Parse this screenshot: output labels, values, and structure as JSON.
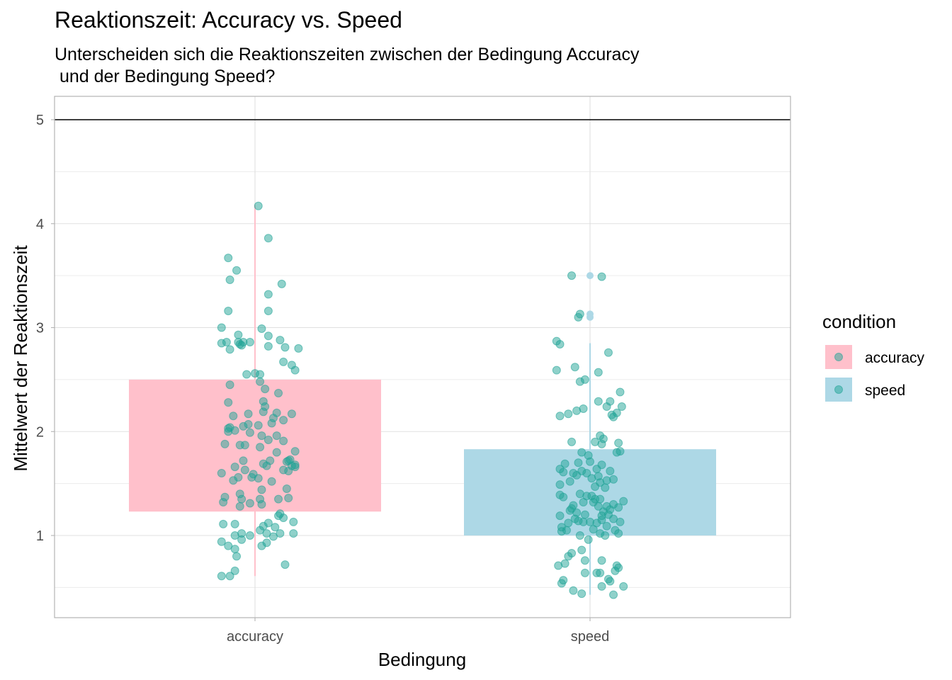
{
  "chart_data": {
    "type": "bar",
    "title": "Reaktionszeit: Accuracy vs. Speed",
    "subtitle": "Unterscheiden sich die Reaktionszeiten zwischen der Bedingung Accuracy\n und der Bedingung Speed?",
    "xlabel": "Bedingung",
    "ylabel": "Mittelwert der Reaktionszeit",
    "categories": [
      "accuracy",
      "speed"
    ],
    "ylim": [
      0.3,
      5.3
    ],
    "yticks": [
      1,
      2,
      3,
      4,
      5
    ],
    "grid": true,
    "legend_title": "condition",
    "legend_position": "right",
    "reference_line": 5,
    "colors": {
      "accuracy": "#FFC0CB",
      "speed": "#ADD8E6",
      "points": "#1FA396",
      "reference": "#000000"
    },
    "bars": [
      {
        "category": "accuracy",
        "ymin": 1.23,
        "ymax": 2.5,
        "whisker_min": 0.61,
        "whisker_max": 4.18
      },
      {
        "category": "speed",
        "ymin": 1.0,
        "ymax": 1.83,
        "whisker_min": 0.43,
        "whisker_max": 2.85,
        "outliers": [
          3.1,
          3.13,
          3.5
        ]
      }
    ],
    "points": {
      "accuracy": [
        [
          -0.2,
          0.61
        ],
        [
          -0.15,
          0.61
        ],
        [
          -0.12,
          0.66
        ],
        [
          -0.11,
          0.8
        ],
        [
          -0.2,
          0.94
        ],
        [
          -0.16,
          0.9
        ],
        [
          -0.12,
          0.87
        ],
        [
          -0.08,
          0.96
        ],
        [
          0.04,
          0.9
        ],
        [
          0.07,
          0.93
        ],
        [
          0.11,
          0.99
        ],
        [
          0.18,
          0.72
        ],
        [
          -0.19,
          1.11
        ],
        [
          -0.12,
          1.0
        ],
        [
          -0.08,
          1.02
        ],
        [
          -0.12,
          1.11
        ],
        [
          -0.03,
          1.0
        ],
        [
          0.03,
          1.05
        ],
        [
          0.05,
          1.09
        ],
        [
          0.07,
          1.02
        ],
        [
          0.12,
          1.08
        ],
        [
          0.15,
          1.02
        ],
        [
          0.17,
          1.17
        ],
        [
          0.23,
          1.02
        ],
        [
          0.23,
          1.13
        ],
        [
          -0.19,
          1.32
        ],
        [
          -0.18,
          1.37
        ],
        [
          -0.09,
          1.28
        ],
        [
          -0.08,
          1.35
        ],
        [
          -0.09,
          1.4
        ],
        [
          -0.03,
          1.31
        ],
        [
          0.03,
          1.35
        ],
        [
          0.04,
          1.3
        ],
        [
          0.04,
          1.44
        ],
        [
          0.08,
          1.12
        ],
        [
          0.14,
          1.19
        ],
        [
          0.14,
          1.35
        ],
        [
          0.15,
          1.21
        ],
        [
          0.19,
          1.45
        ],
        [
          0.2,
          1.62
        ],
        [
          0.22,
          1.67
        ],
        [
          0.19,
          1.71
        ],
        [
          0.2,
          1.36
        ],
        [
          -0.2,
          1.6
        ],
        [
          -0.13,
          1.53
        ],
        [
          -0.1,
          1.56
        ],
        [
          -0.07,
          1.72
        ],
        [
          -0.06,
          1.63
        ],
        [
          -0.02,
          1.56
        ],
        [
          -0.01,
          1.59
        ],
        [
          0.02,
          1.55
        ],
        [
          0.07,
          1.67
        ],
        [
          0.09,
          1.72
        ],
        [
          0.1,
          1.52
        ],
        [
          0.13,
          1.8
        ],
        [
          0.17,
          1.63
        ],
        [
          0.2,
          1.72
        ],
        [
          0.24,
          1.66
        ],
        [
          0.24,
          1.68
        ],
        [
          -0.18,
          1.88
        ],
        [
          -0.16,
          2.03
        ],
        [
          -0.12,
          2.01
        ],
        [
          -0.09,
          1.87
        ],
        [
          -0.06,
          1.87
        ],
        [
          -0.03,
          1.99
        ],
        [
          0.03,
          1.85
        ],
        [
          0.04,
          1.96
        ],
        [
          0.05,
          1.69
        ],
        [
          0.08,
          1.92
        ],
        [
          0.13,
          1.96
        ],
        [
          0.17,
          1.91
        ],
        [
          0.21,
          1.73
        ],
        [
          0.24,
          1.81
        ],
        [
          -0.15,
          2.04
        ],
        [
          -0.16,
          2.0
        ],
        [
          -0.13,
          2.15
        ],
        [
          -0.12,
          1.66
        ],
        [
          -0.07,
          2.05
        ],
        [
          -0.04,
          2.07
        ],
        [
          -0.04,
          2.17
        ],
        [
          0.02,
          2.06
        ],
        [
          0.05,
          2.19
        ],
        [
          0.06,
          2.24
        ],
        [
          0.1,
          2.08
        ],
        [
          0.11,
          2.13
        ],
        [
          0.13,
          2.18
        ],
        [
          0.17,
          2.11
        ],
        [
          0.22,
          2.17
        ],
        [
          -0.16,
          2.28
        ],
        [
          -0.15,
          2.45
        ],
        [
          -0.05,
          2.55
        ],
        [
          0.0,
          2.56
        ],
        [
          0.03,
          2.55
        ],
        [
          0.03,
          2.48
        ],
        [
          0.05,
          2.29
        ],
        [
          0.06,
          2.41
        ],
        [
          0.14,
          2.37
        ],
        [
          0.17,
          2.67
        ],
        [
          0.22,
          2.64
        ],
        [
          0.24,
          2.59
        ],
        [
          -0.2,
          2.85
        ],
        [
          -0.17,
          2.86
        ],
        [
          -0.15,
          2.79
        ],
        [
          -0.1,
          2.86
        ],
        [
          -0.1,
          2.93
        ],
        [
          -0.08,
          2.83
        ],
        [
          -0.07,
          2.86
        ],
        [
          -0.09,
          2.84
        ],
        [
          -0.03,
          2.86
        ],
        [
          0.04,
          2.99
        ],
        [
          0.08,
          2.82
        ],
        [
          0.08,
          2.92
        ],
        [
          0.15,
          2.88
        ],
        [
          0.18,
          2.81
        ],
        [
          0.26,
          2.8
        ],
        [
          -0.2,
          3.0
        ],
        [
          -0.16,
          3.16
        ],
        [
          -0.15,
          3.46
        ],
        [
          -0.16,
          3.67
        ],
        [
          -0.11,
          3.55
        ],
        [
          0.08,
          3.32
        ],
        [
          0.08,
          3.16
        ],
        [
          0.16,
          3.42
        ],
        [
          0.08,
          3.86
        ],
        [
          0.02,
          4.17
        ]
      ],
      "speed": [
        [
          -0.19,
          0.71
        ],
        [
          -0.17,
          0.54
        ],
        [
          -0.16,
          0.57
        ],
        [
          -0.15,
          0.73
        ],
        [
          -0.13,
          0.8
        ],
        [
          -0.11,
          0.83
        ],
        [
          -0.1,
          0.47
        ],
        [
          -0.05,
          0.86
        ],
        [
          -0.05,
          0.44
        ],
        [
          -0.03,
          0.76
        ],
        [
          -0.03,
          0.64
        ],
        [
          -0.01,
          0.96
        ],
        [
          0.04,
          0.64
        ],
        [
          0.06,
          0.64
        ],
        [
          0.07,
          0.76
        ],
        [
          0.07,
          0.51
        ],
        [
          0.11,
          0.58
        ],
        [
          0.12,
          0.56
        ],
        [
          0.14,
          0.43
        ],
        [
          0.15,
          0.66
        ],
        [
          0.16,
          0.71
        ],
        [
          0.17,
          0.69
        ],
        [
          0.2,
          0.51
        ],
        [
          -0.17,
          1.04
        ],
        [
          -0.17,
          1.08
        ],
        [
          -0.18,
          1.19
        ],
        [
          -0.14,
          1.05
        ],
        [
          -0.13,
          1.12
        ],
        [
          -0.1,
          1.29
        ],
        [
          -0.09,
          1.16
        ],
        [
          -0.07,
          1.14
        ],
        [
          -0.06,
          1.0
        ],
        [
          -0.04,
          1.13
        ],
        [
          -0.03,
          1.2
        ],
        [
          0.0,
          1.13
        ],
        [
          0.02,
          1.06
        ],
        [
          0.04,
          1.12
        ],
        [
          0.06,
          1.02
        ],
        [
          0.07,
          1.15
        ],
        [
          0.08,
          1.23
        ],
        [
          0.09,
          1.0
        ],
        [
          0.1,
          1.09
        ],
        [
          0.11,
          1.2
        ],
        [
          0.14,
          1.16
        ],
        [
          0.15,
          1.05
        ],
        [
          0.17,
          1.02
        ],
        [
          0.18,
          1.13
        ],
        [
          0.2,
          1.33
        ],
        [
          -0.18,
          1.39
        ],
        [
          -0.16,
          1.37
        ],
        [
          -0.12,
          1.24
        ],
        [
          -0.11,
          1.26
        ],
        [
          -0.08,
          1.22
        ],
        [
          -0.06,
          1.4
        ],
        [
          -0.04,
          1.32
        ],
        [
          -0.02,
          1.38
        ],
        [
          0.01,
          1.38
        ],
        [
          0.02,
          1.32
        ],
        [
          0.03,
          1.35
        ],
        [
          0.05,
          1.28
        ],
        [
          0.06,
          1.35
        ],
        [
          0.07,
          1.19
        ],
        [
          0.1,
          1.28
        ],
        [
          0.12,
          1.25
        ],
        [
          0.14,
          1.3
        ],
        [
          0.17,
          1.27
        ],
        [
          -0.18,
          1.64
        ],
        [
          -0.18,
          1.49
        ],
        [
          -0.16,
          1.61
        ],
        [
          -0.15,
          1.69
        ],
        [
          -0.12,
          1.52
        ],
        [
          -0.1,
          1.6
        ],
        [
          -0.08,
          1.58
        ],
        [
          -0.07,
          1.7
        ],
        [
          -0.05,
          1.62
        ],
        [
          -0.02,
          1.6
        ],
        [
          -0.01,
          1.77
        ],
        [
          0.01,
          1.55
        ],
        [
          0.03,
          1.47
        ],
        [
          0.04,
          1.64
        ],
        [
          0.05,
          1.57
        ],
        [
          0.06,
          1.51
        ],
        [
          0.07,
          1.68
        ],
        [
          0.09,
          1.46
        ],
        [
          0.1,
          1.53
        ],
        [
          0.12,
          1.62
        ],
        [
          0.14,
          1.54
        ],
        [
          0.16,
          1.8
        ],
        [
          -0.11,
          1.9
        ],
        [
          -0.05,
          1.8
        ],
        [
          0.0,
          1.71
        ],
        [
          0.03,
          1.9
        ],
        [
          0.06,
          1.96
        ],
        [
          0.07,
          1.88
        ],
        [
          0.08,
          1.93
        ],
        [
          0.13,
          2.16
        ],
        [
          0.17,
          1.89
        ],
        [
          0.18,
          1.81
        ],
        [
          -0.18,
          2.15
        ],
        [
          -0.13,
          2.17
        ],
        [
          -0.08,
          2.2
        ],
        [
          -0.04,
          2.22
        ],
        [
          0.05,
          2.29
        ],
        [
          0.1,
          2.24
        ],
        [
          0.12,
          2.29
        ],
        [
          0.16,
          2.18
        ],
        [
          0.18,
          2.38
        ],
        [
          0.19,
          2.24
        ],
        [
          0.14,
          2.14
        ],
        [
          -0.2,
          2.59
        ],
        [
          -0.09,
          2.62
        ],
        [
          -0.06,
          2.48
        ],
        [
          -0.03,
          2.5
        ],
        [
          0.05,
          2.57
        ],
        [
          0.11,
          2.76
        ],
        [
          -0.2,
          2.87
        ],
        [
          -0.18,
          2.84
        ],
        [
          -0.07,
          3.1
        ],
        [
          -0.06,
          3.13
        ],
        [
          -0.11,
          3.5
        ],
        [
          0.07,
          3.49
        ]
      ]
    }
  }
}
